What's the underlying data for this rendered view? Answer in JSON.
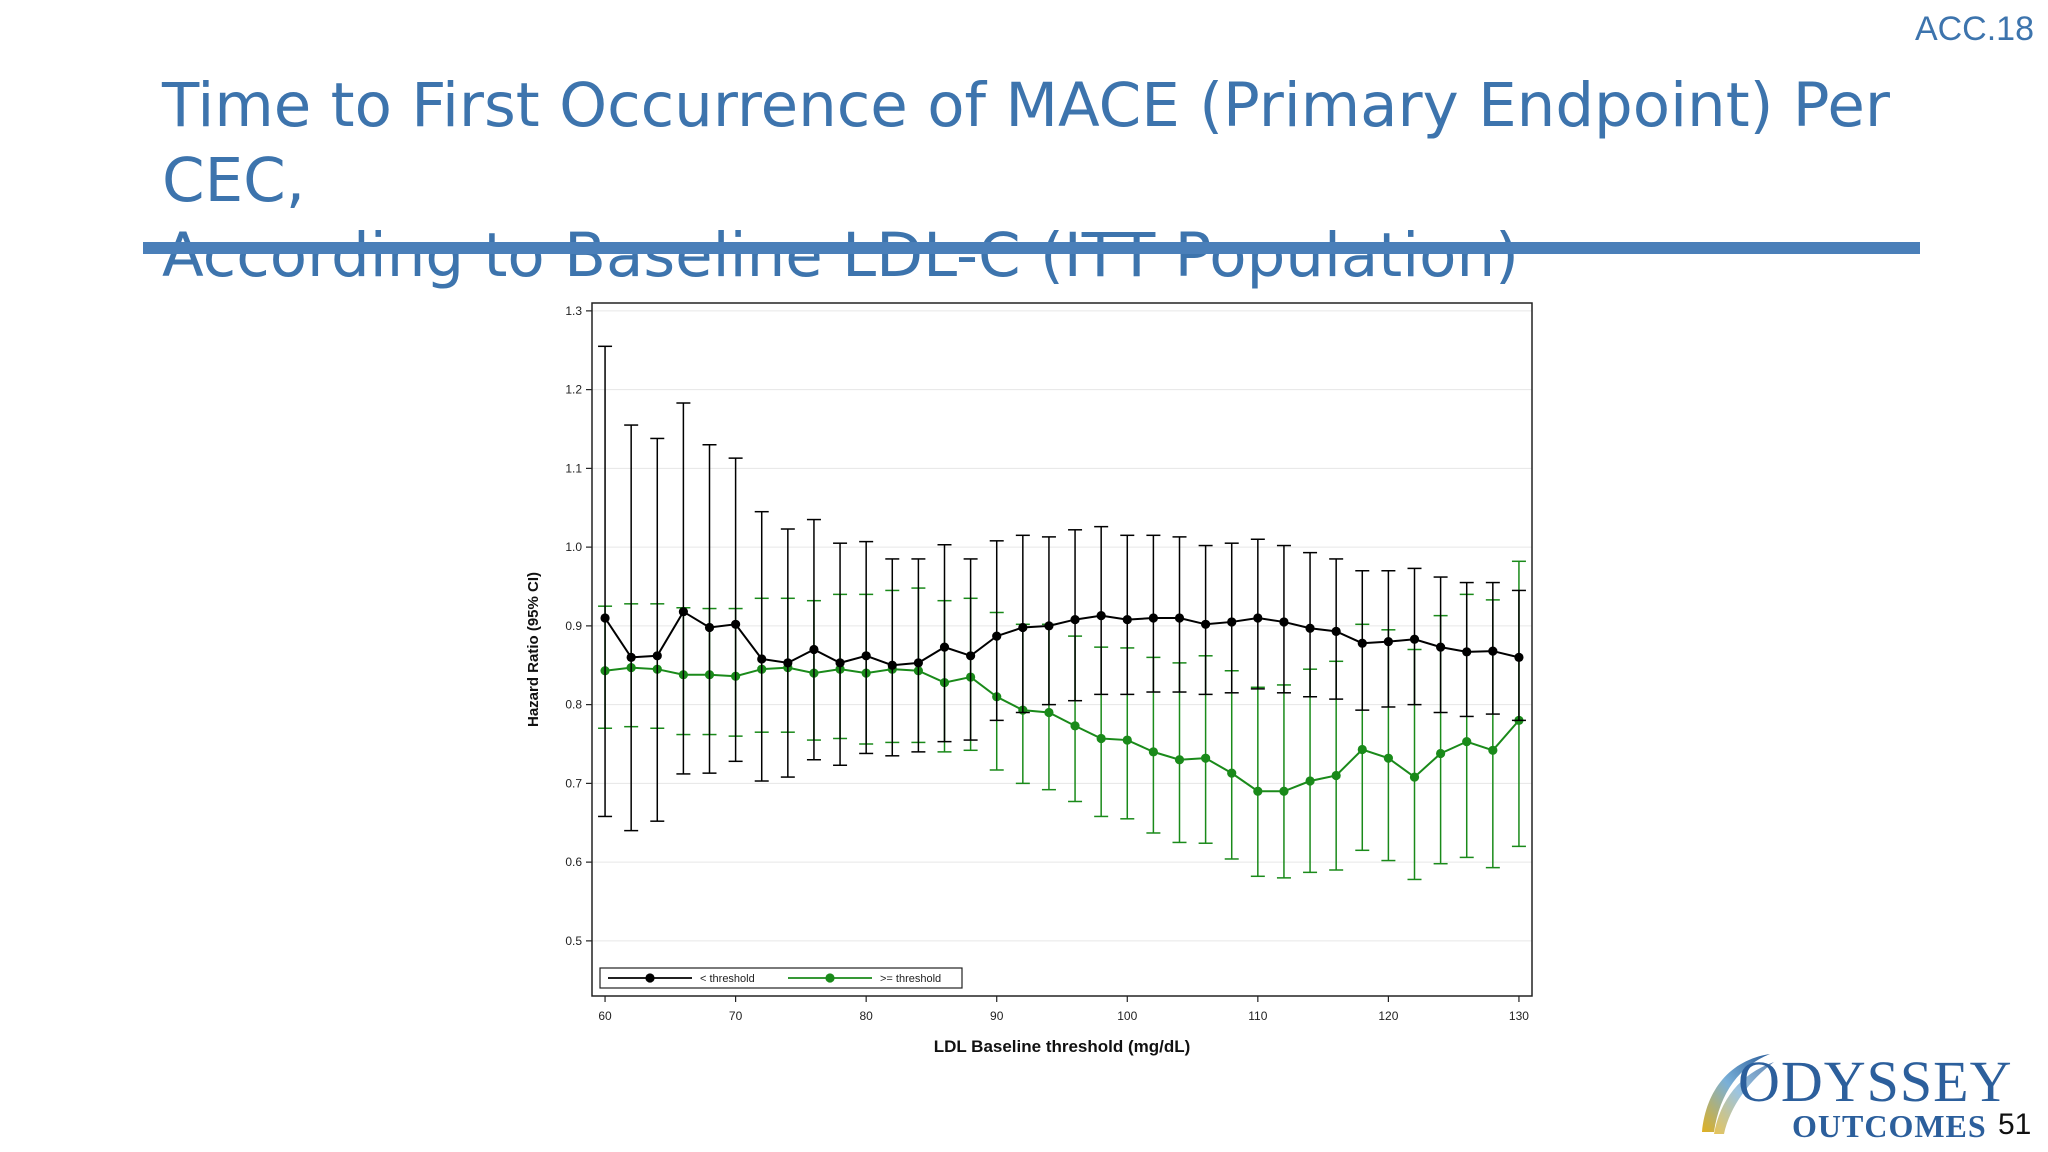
{
  "slide": {
    "tag": "ACC.18",
    "title_line1": "Time to First Occurrence of MACE (Primary Endpoint) Per CEC,",
    "title_line2": "According to Baseline LDL-C (ITT Population)",
    "logo_line1": "ODYSSEY",
    "logo_line2": "OUTCOMES",
    "page_number": "51"
  },
  "colors": {
    "title": "#3d74ad",
    "rule": "#4a7fb9",
    "series_below": "#000000",
    "series_above": "#1a8a1a"
  },
  "chart_data": {
    "type": "line",
    "title": "",
    "xlabel": "LDL Baseline threshold (mg/dL)",
    "ylabel": "Hazard Ratio (95% CI)",
    "xlim": [
      59,
      131
    ],
    "ylim": [
      0.43,
      1.31
    ],
    "xticks": [
      60,
      70,
      80,
      90,
      100,
      110,
      120,
      130
    ],
    "yticks": [
      0.5,
      0.6,
      0.7,
      0.8,
      0.9,
      1.0,
      1.1,
      1.2,
      1.3
    ],
    "grid": "horizontal",
    "legend_position": "bottom-left",
    "error_bars": "95% CI",
    "x": [
      60,
      62,
      64,
      66,
      68,
      70,
      72,
      74,
      76,
      78,
      80,
      82,
      84,
      86,
      88,
      90,
      92,
      94,
      96,
      98,
      100,
      102,
      104,
      106,
      108,
      110,
      112,
      114,
      116,
      118,
      120,
      122,
      124,
      126,
      128,
      130
    ],
    "series": [
      {
        "name": "< threshold",
        "color": "#000000",
        "values": [
          0.91,
          0.86,
          0.862,
          0.918,
          0.898,
          0.902,
          0.858,
          0.853,
          0.87,
          0.853,
          0.862,
          0.85,
          0.853,
          0.873,
          0.862,
          0.887,
          0.898,
          0.9,
          0.908,
          0.913,
          0.908,
          0.91,
          0.91,
          0.902,
          0.905,
          0.91,
          0.905,
          0.897,
          0.893,
          0.878,
          0.88,
          0.883,
          0.873,
          0.867,
          0.868,
          0.86
        ],
        "lower": [
          0.658,
          0.64,
          0.652,
          0.712,
          0.713,
          0.728,
          0.703,
          0.708,
          0.73,
          0.723,
          0.738,
          0.735,
          0.74,
          0.753,
          0.755,
          0.78,
          0.79,
          0.8,
          0.805,
          0.813,
          0.813,
          0.816,
          0.816,
          0.813,
          0.815,
          0.82,
          0.815,
          0.81,
          0.807,
          0.793,
          0.797,
          0.8,
          0.79,
          0.785,
          0.788,
          0.78
        ],
        "upper": [
          1.255,
          1.155,
          1.138,
          1.183,
          1.13,
          1.113,
          1.045,
          1.023,
          1.035,
          1.005,
          1.007,
          0.985,
          0.985,
          1.003,
          0.985,
          1.008,
          1.015,
          1.013,
          1.022,
          1.026,
          1.015,
          1.015,
          1.013,
          1.002,
          1.005,
          1.01,
          1.002,
          0.993,
          0.985,
          0.97,
          0.97,
          0.973,
          0.962,
          0.955,
          0.955,
          0.945
        ]
      },
      {
        "name": ">= threshold",
        "color": "#1a8a1a",
        "values": [
          0.843,
          0.847,
          0.845,
          0.838,
          0.838,
          0.836,
          0.845,
          0.847,
          0.84,
          0.845,
          0.84,
          0.845,
          0.843,
          0.828,
          0.835,
          0.81,
          0.793,
          0.79,
          0.773,
          0.757,
          0.755,
          0.74,
          0.73,
          0.732,
          0.713,
          0.69,
          0.69,
          0.703,
          0.71,
          0.743,
          0.732,
          0.708,
          0.738,
          0.753,
          0.742,
          0.78
        ],
        "lower": [
          0.77,
          0.772,
          0.77,
          0.762,
          0.762,
          0.76,
          0.765,
          0.765,
          0.755,
          0.757,
          0.75,
          0.752,
          0.752,
          0.74,
          0.742,
          0.717,
          0.7,
          0.692,
          0.677,
          0.658,
          0.655,
          0.637,
          0.625,
          0.624,
          0.604,
          0.582,
          0.58,
          0.587,
          0.59,
          0.615,
          0.602,
          0.578,
          0.598,
          0.606,
          0.593,
          0.62
        ],
        "upper": [
          0.925,
          0.928,
          0.928,
          0.923,
          0.922,
          0.922,
          0.935,
          0.935,
          0.932,
          0.94,
          0.94,
          0.945,
          0.948,
          0.932,
          0.935,
          0.917,
          0.902,
          0.902,
          0.887,
          0.873,
          0.872,
          0.86,
          0.853,
          0.862,
          0.843,
          0.822,
          0.825,
          0.845,
          0.855,
          0.902,
          0.895,
          0.87,
          0.913,
          0.94,
          0.933,
          0.982
        ]
      }
    ]
  }
}
